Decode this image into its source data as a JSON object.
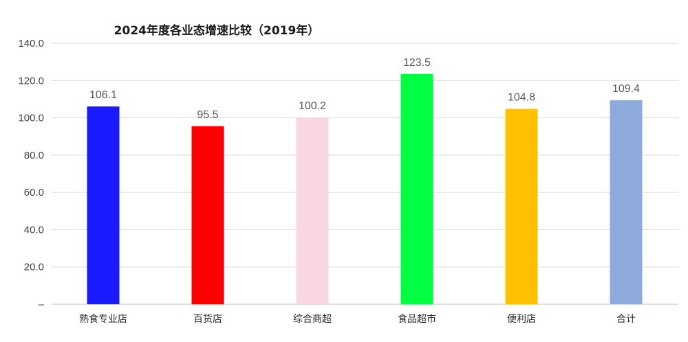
{
  "chart_data": {
    "type": "bar",
    "title": "2024年度各业态增速比较（2019年）",
    "xlabel": "",
    "ylabel": "",
    "ylim": [
      0,
      140
    ],
    "yticks": [
      "–",
      "20.0",
      "40.0",
      "60.0",
      "80.0",
      "100.0",
      "120.0",
      "140.0"
    ],
    "ytick_values": [
      0,
      20,
      40,
      60,
      80,
      100,
      120,
      140
    ],
    "categories": [
      "熟食专业店",
      "百货店",
      "综合商超",
      "食品超市",
      "便利店",
      "合计"
    ],
    "values": [
      106.1,
      95.5,
      100.2,
      123.5,
      104.8,
      109.4
    ],
    "data_labels": [
      "106.1",
      "95.5",
      "100.2",
      "123.5",
      "104.8",
      "109.4"
    ],
    "colors": [
      "#1a1aff",
      "#ff0000",
      "#f9d6e1",
      "#00ff40",
      "#ffc000",
      "#8eaadb"
    ],
    "grid": true,
    "legend": "none"
  }
}
